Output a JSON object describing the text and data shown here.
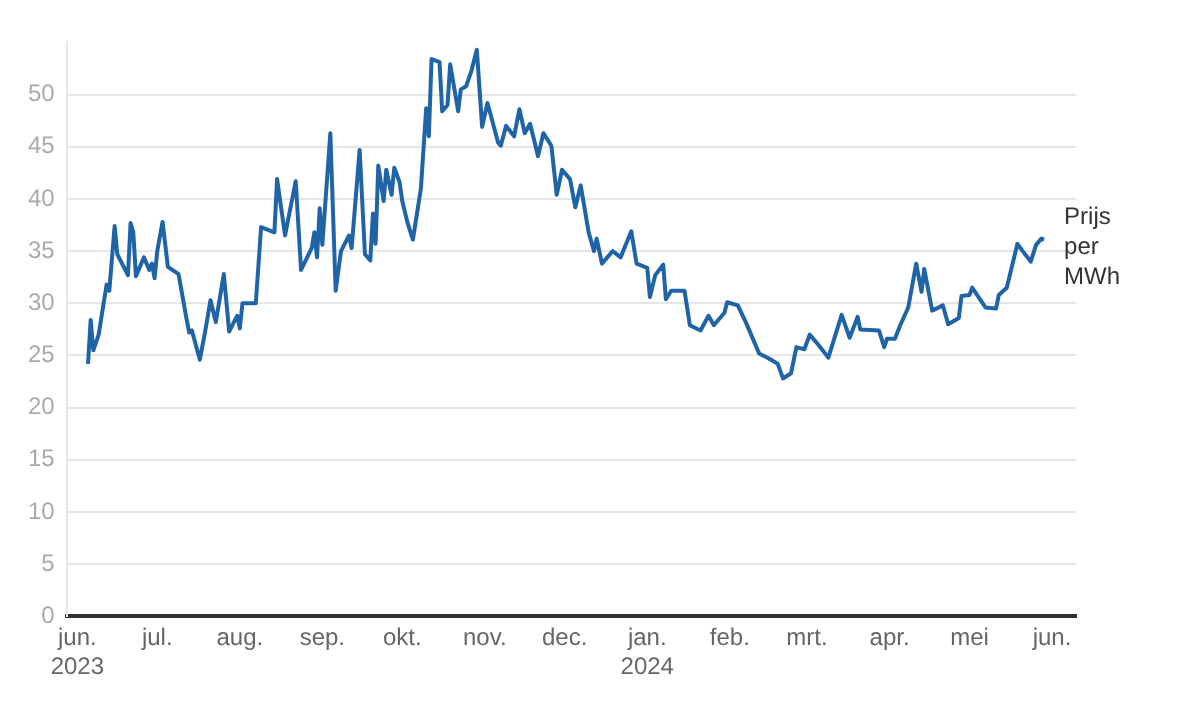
{
  "chart_data": {
    "type": "line",
    "x": [
      "2023-06-05",
      "2023-06-06",
      "2023-06-07",
      "2023-06-09",
      "2023-06-12",
      "2023-06-13",
      "2023-06-15",
      "2023-06-16",
      "2023-06-20",
      "2023-06-21",
      "2023-06-22",
      "2023-06-23",
      "2023-06-26",
      "2023-06-28",
      "2023-06-29",
      "2023-06-30",
      "2023-07-01",
      "2023-07-03",
      "2023-07-05",
      "2023-07-09",
      "2023-07-12",
      "2023-07-13",
      "2023-07-14",
      "2023-07-17",
      "2023-07-19",
      "2023-07-21",
      "2023-07-23",
      "2023-07-26",
      "2023-07-28",
      "2023-07-31",
      "2023-08-01",
      "2023-08-02",
      "2023-08-07",
      "2023-08-09",
      "2023-08-14",
      "2023-08-15",
      "2023-08-18",
      "2023-08-22",
      "2023-08-24",
      "2023-08-28",
      "2023-08-29",
      "2023-08-30",
      "2023-08-31",
      "2023-09-01",
      "2023-09-04",
      "2023-09-06",
      "2023-09-08",
      "2023-09-11",
      "2023-09-12",
      "2023-09-15",
      "2023-09-17",
      "2023-09-19",
      "2023-09-20",
      "2023-09-21",
      "2023-09-22",
      "2023-09-24",
      "2023-09-25",
      "2023-09-27",
      "2023-09-28",
      "2023-09-30",
      "2023-10-01",
      "2023-10-03",
      "2023-10-05",
      "2023-10-08",
      "2023-10-10",
      "2023-10-11",
      "2023-10-12",
      "2023-10-15",
      "2023-10-16",
      "2023-10-18",
      "2023-10-19",
      "2023-10-22",
      "2023-10-23",
      "2023-10-25",
      "2023-10-27",
      "2023-10-29",
      "2023-10-31",
      "2023-11-02",
      "2023-11-06",
      "2023-11-07",
      "2023-11-09",
      "2023-11-12",
      "2023-11-14",
      "2023-11-16",
      "2023-11-18",
      "2023-11-21",
      "2023-11-23",
      "2023-11-26",
      "2023-11-28",
      "2023-11-30",
      "2023-12-03",
      "2023-12-05",
      "2023-12-07",
      "2023-12-10",
      "2023-12-12",
      "2023-12-13",
      "2023-12-15",
      "2023-12-19",
      "2023-12-22",
      "2023-12-26",
      "2023-12-28",
      "2024-01-01",
      "2024-01-02",
      "2024-01-04",
      "2024-01-07",
      "2024-01-08",
      "2024-01-10",
      "2024-01-15",
      "2024-01-17",
      "2024-01-21",
      "2024-01-24",
      "2024-01-26",
      "2024-01-28",
      "2024-01-30",
      "2024-01-31",
      "2024-02-04",
      "2024-02-07",
      "2024-02-10",
      "2024-02-12",
      "2024-02-15",
      "2024-02-19",
      "2024-02-21",
      "2024-02-24",
      "2024-02-26",
      "2024-02-29",
      "2024-03-02",
      "2024-03-05",
      "2024-03-09",
      "2024-03-14",
      "2024-03-17",
      "2024-03-20",
      "2024-03-21",
      "2024-03-28",
      "2024-03-30",
      "2024-03-31",
      "2024-04-03",
      "2024-04-05",
      "2024-04-08",
      "2024-04-11",
      "2024-04-13",
      "2024-04-14",
      "2024-04-17",
      "2024-04-21",
      "2024-04-23",
      "2024-04-27",
      "2024-04-28",
      "2024-05-01",
      "2024-05-02",
      "2024-05-07",
      "2024-05-11",
      "2024-05-12",
      "2024-05-15",
      "2024-05-19",
      "2024-05-21",
      "2024-05-24",
      "2024-05-26",
      "2024-05-28",
      "2024-05-29"
    ],
    "series": [
      {
        "name": "Prijs per MWh",
        "color": "#2064a8",
        "values": [
          24.2,
          28.4,
          25.5,
          27.0,
          31.8,
          31.2,
          37.4,
          34.7,
          32.7,
          37.7,
          36.8,
          32.6,
          34.4,
          33.2,
          33.8,
          32.4,
          35.0,
          37.8,
          33.5,
          32.8,
          28.5,
          27.2,
          27.4,
          24.6,
          27.3,
          30.3,
          28.2,
          32.8,
          27.3,
          28.8,
          27.6,
          30.0,
          30.0,
          37.3,
          36.8,
          41.9,
          36.5,
          41.7,
          33.2,
          35.3,
          36.8,
          34.4,
          39.1,
          35.6,
          46.3,
          31.2,
          35.0,
          36.5,
          35.3,
          44.7,
          34.7,
          34.1,
          38.6,
          35.7,
          43.2,
          39.8,
          42.8,
          40.4,
          43.0,
          41.6,
          39.8,
          37.7,
          36.1,
          41.0,
          48.7,
          46.0,
          53.4,
          53.1,
          48.4,
          49.0,
          52.9,
          48.4,
          50.5,
          50.8,
          52.3,
          54.3,
          46.9,
          49.2,
          45.4,
          45.1,
          47.0,
          46.0,
          48.6,
          46.3,
          47.2,
          44.1,
          46.3,
          45.1,
          40.4,
          42.8,
          41.9,
          39.2,
          41.3,
          36.8,
          35.0,
          36.2,
          33.8,
          35.0,
          34.4,
          36.9,
          33.8,
          33.4,
          30.6,
          32.7,
          33.7,
          30.4,
          31.2,
          31.2,
          27.9,
          27.4,
          28.8,
          27.9,
          28.5,
          29.1,
          30.1,
          29.8,
          28.2,
          26.4,
          25.2,
          24.8,
          24.2,
          22.8,
          23.3,
          25.8,
          25.6,
          27.0,
          26.1,
          24.8,
          28.9,
          26.7,
          28.7,
          27.5,
          27.4,
          25.8,
          26.6,
          26.6,
          27.9,
          29.6,
          33.8,
          31.1,
          33.3,
          29.3,
          29.8,
          28.0,
          28.6,
          30.7,
          30.8,
          31.5,
          29.6,
          29.5,
          30.8,
          31.5,
          35.7,
          35.0,
          34.0,
          35.6,
          36.2,
          36.1
        ]
      }
    ],
    "xlim": [
      "2023-05-28",
      "2024-06-10"
    ],
    "xticks": [
      {
        "value": "2023-06-01",
        "label": "jun. 2023"
      },
      {
        "value": "2023-07-01",
        "label": "jul."
      },
      {
        "value": "2023-08-01",
        "label": "aug."
      },
      {
        "value": "2023-09-01",
        "label": "sep."
      },
      {
        "value": "2023-10-01",
        "label": "okt."
      },
      {
        "value": "2023-11-01",
        "label": "nov."
      },
      {
        "value": "2023-12-01",
        "label": "dec."
      },
      {
        "value": "2024-01-01",
        "label": "jan. 2024"
      },
      {
        "value": "2024-02-01",
        "label": "feb."
      },
      {
        "value": "2024-03-01",
        "label": "mrt."
      },
      {
        "value": "2024-04-01",
        "label": "apr."
      },
      {
        "value": "2024-05-01",
        "label": "mei"
      },
      {
        "value": "2024-06-01",
        "label": "jun."
      }
    ],
    "ylim": [
      0,
      55
    ],
    "yticks": [
      0,
      5,
      10,
      15,
      20,
      25,
      30,
      35,
      40,
      45,
      50
    ],
    "grid": "y",
    "legend": false,
    "marker": "none",
    "line_style": "solid"
  }
}
